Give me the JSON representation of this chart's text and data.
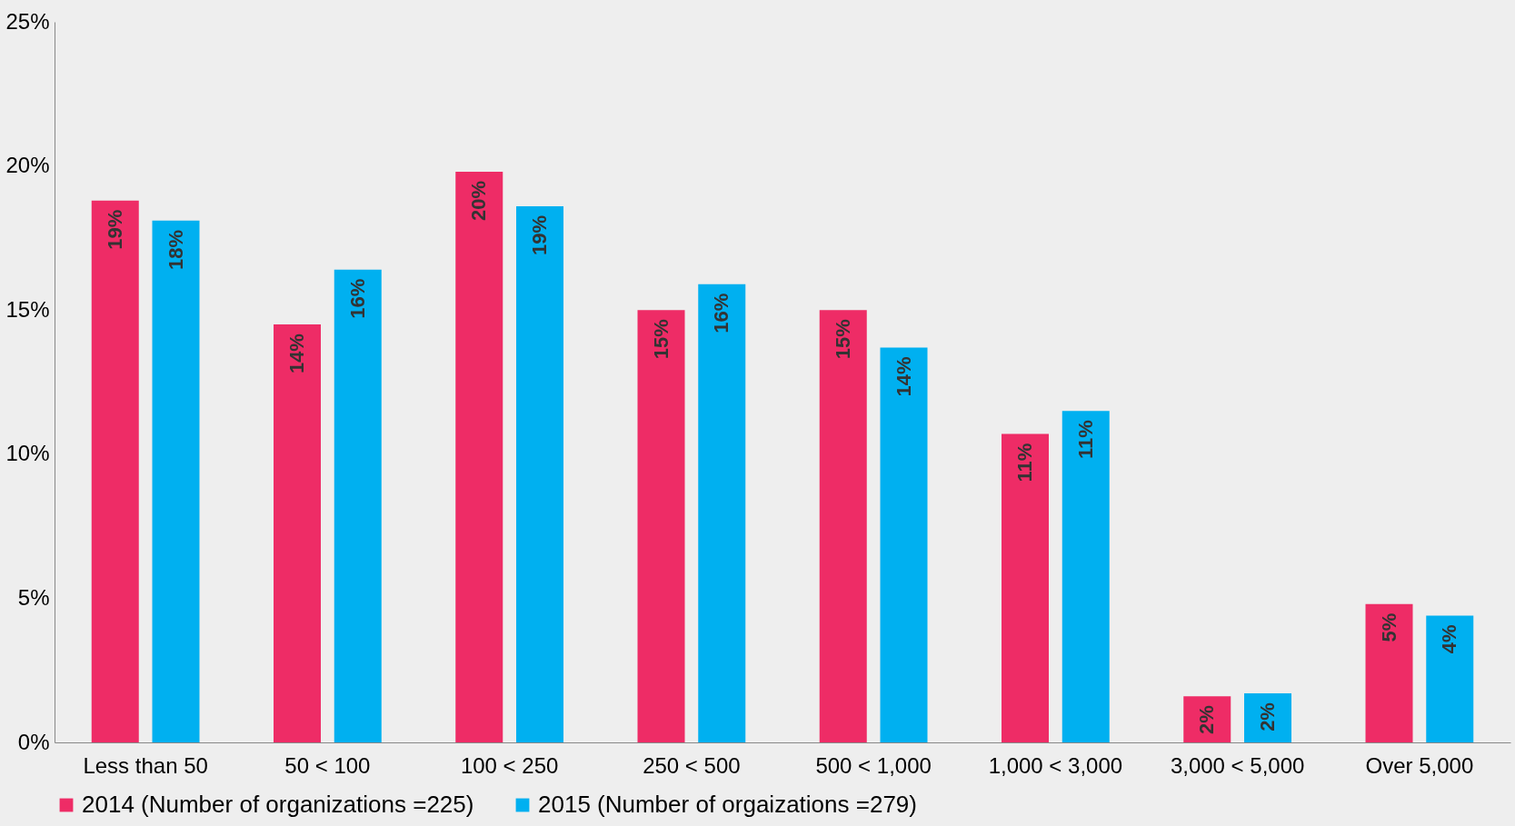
{
  "chart_data": {
    "type": "bar",
    "categories": [
      "Less than 50",
      "50 < 100",
      "100 < 250",
      "250 < 500",
      "500 < 1,000",
      "1,000 < 3,000",
      "3,000 < 5,000",
      "Over 5,000"
    ],
    "series": [
      {
        "name": "2014 (Number of organizations =225)",
        "color": "#ee2c66",
        "values": [
          18.8,
          14.5,
          19.8,
          15.0,
          15.0,
          10.7,
          1.6,
          4.8
        ],
        "value_labels": [
          "19%",
          "14%",
          "20%",
          "15%",
          "15%",
          "11%",
          "2%",
          "5%"
        ]
      },
      {
        "name": "2015 (Number of orgaizations =279)",
        "color": "#00b0f0",
        "values": [
          18.1,
          16.4,
          18.6,
          15.9,
          13.7,
          11.5,
          1.7,
          4.4
        ],
        "value_labels": [
          "18%",
          "16%",
          "19%",
          "16%",
          "14%",
          "11%",
          "2%",
          "4%"
        ]
      }
    ],
    "ylim": [
      0,
      25
    ],
    "yticks": [
      {
        "value": 0,
        "label": "0%"
      },
      {
        "value": 5,
        "label": "5%"
      },
      {
        "value": 10,
        "label": "10%"
      },
      {
        "value": 15,
        "label": "15%"
      },
      {
        "value": 20,
        "label": "20%"
      },
      {
        "value": 25,
        "label": "25%"
      }
    ],
    "grid": false,
    "legend": "bottom"
  }
}
